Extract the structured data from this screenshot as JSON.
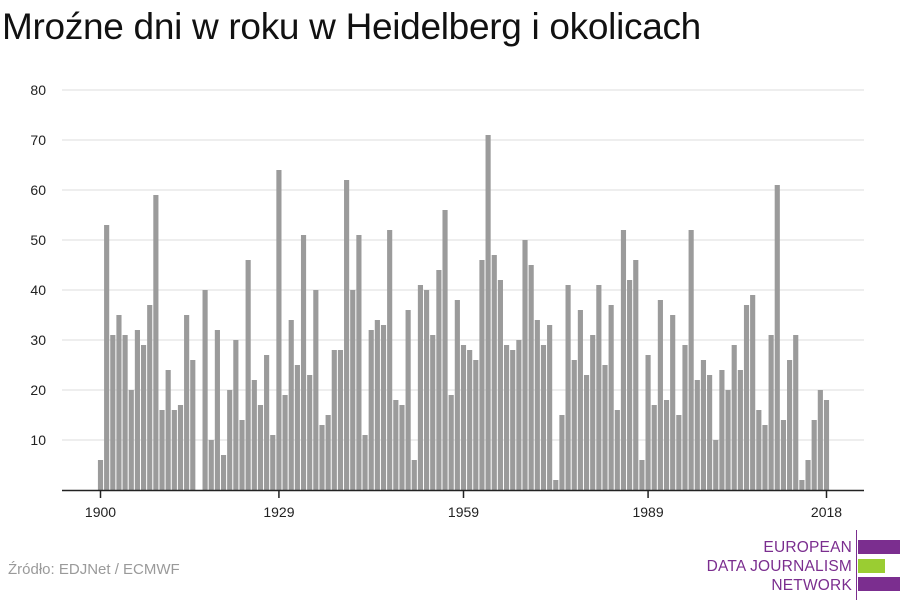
{
  "title": "Mroźne dni w roku w Heidelberg i okolicach",
  "source": "Źródło: EDJNet / ECMWF",
  "logo": {
    "line1": "EUROPEAN",
    "line2": "DATA JOURNALISM",
    "line3": "NETWORK",
    "colors": {
      "purple": "#7b2e8f",
      "green": "#9acd32"
    }
  },
  "colors": {
    "bar": "#9b9b9b",
    "grid": "#dddddd",
    "axis": "#222222"
  },
  "chart_data": {
    "type": "bar",
    "title": "Mroźne dni w roku w Heidelberg i okolicach",
    "xlabel": "",
    "ylabel": "",
    "ylim": [
      0,
      80
    ],
    "yticks": [
      10,
      20,
      30,
      40,
      50,
      60,
      70,
      80
    ],
    "xticks": [
      1900,
      1929,
      1959,
      1989,
      2018
    ],
    "grid": true,
    "legend": "none",
    "x": [
      1900,
      1901,
      1902,
      1903,
      1904,
      1905,
      1906,
      1907,
      1908,
      1909,
      1910,
      1911,
      1912,
      1913,
      1914,
      1915,
      1916,
      1917,
      1918,
      1919,
      1920,
      1921,
      1922,
      1923,
      1924,
      1925,
      1926,
      1927,
      1928,
      1929,
      1930,
      1931,
      1932,
      1933,
      1934,
      1935,
      1936,
      1937,
      1938,
      1939,
      1940,
      1941,
      1942,
      1943,
      1944,
      1945,
      1946,
      1947,
      1948,
      1949,
      1950,
      1951,
      1952,
      1953,
      1954,
      1955,
      1956,
      1957,
      1958,
      1959,
      1960,
      1961,
      1962,
      1963,
      1964,
      1965,
      1966,
      1967,
      1968,
      1969,
      1970,
      1971,
      1972,
      1973,
      1974,
      1975,
      1976,
      1977,
      1978,
      1979,
      1980,
      1981,
      1982,
      1983,
      1984,
      1985,
      1986,
      1987,
      1988,
      1989,
      1990,
      1991,
      1992,
      1993,
      1994,
      1995,
      1996,
      1997,
      1998,
      1999,
      2000,
      2001,
      2002,
      2003,
      2004,
      2005,
      2006,
      2007,
      2008,
      2009,
      2010,
      2011,
      2012,
      2013,
      2014,
      2015,
      2016,
      2017,
      2018
    ],
    "values": [
      6,
      53,
      31,
      35,
      31,
      20,
      32,
      29,
      37,
      59,
      16,
      24,
      16,
      17,
      35,
      26,
      0,
      40,
      10,
      32,
      7,
      20,
      30,
      14,
      46,
      22,
      17,
      27,
      11,
      64,
      19,
      34,
      25,
      51,
      23,
      40,
      13,
      15,
      28,
      28,
      62,
      40,
      51,
      11,
      32,
      34,
      33,
      52,
      18,
      17,
      36,
      6,
      41,
      40,
      31,
      44,
      56,
      19,
      38,
      29,
      28,
      26,
      46,
      71,
      47,
      42,
      29,
      28,
      30,
      50,
      45,
      34,
      29,
      33,
      2,
      15,
      41,
      26,
      36,
      23,
      31,
      41,
      25,
      37,
      16,
      52,
      42,
      46,
      6,
      27,
      17,
      38,
      18,
      35,
      15,
      29,
      52,
      22,
      26,
      23,
      10,
      24,
      20,
      29,
      24,
      37,
      39,
      16,
      13,
      31,
      61,
      14,
      26,
      31,
      2,
      6,
      14,
      20,
      18
    ]
  }
}
